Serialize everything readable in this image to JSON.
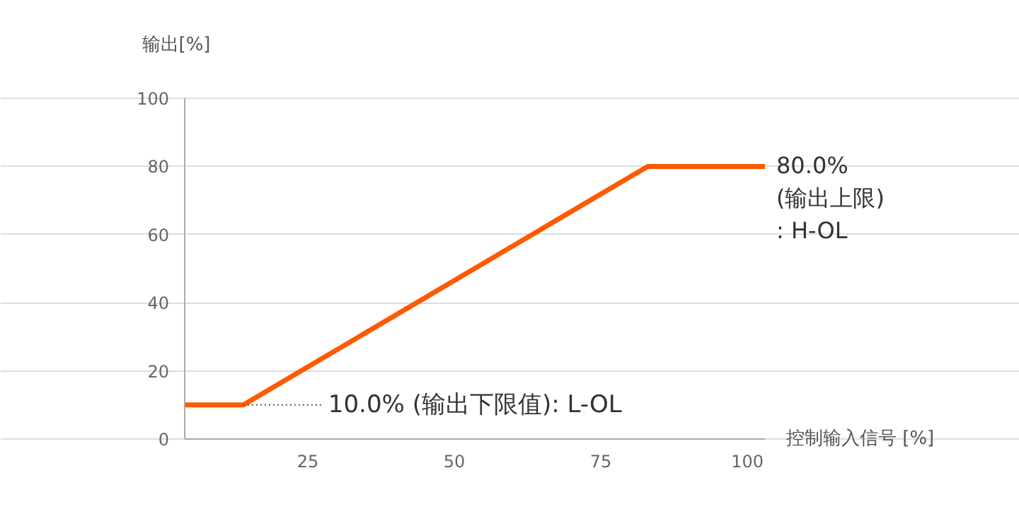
{
  "chart_data": {
    "type": "line",
    "xlabel": "控制输入信号 [%]",
    "ylabel": "输出[%]",
    "x": [
      4,
      14,
      83,
      103
    ],
    "series": [
      {
        "color": "#ff5a00",
        "values": [
          10,
          10,
          80,
          80
        ]
      }
    ],
    "xlim": [
      4,
      103
    ],
    "ylim": [
      0,
      100
    ],
    "xticks": [
      25,
      50,
      75,
      100
    ],
    "yticks": [
      0,
      20,
      40,
      60,
      80,
      100
    ],
    "grid": "y",
    "marker": "none",
    "line_style": "solid",
    "annotations": [
      {
        "text": "10.0% (输出下限值): L-OL",
        "x": 14,
        "y": 10
      },
      {
        "text": "80.0%\n(输出上限)\n: H-OL",
        "x": 103,
        "y": 80
      }
    ]
  }
}
